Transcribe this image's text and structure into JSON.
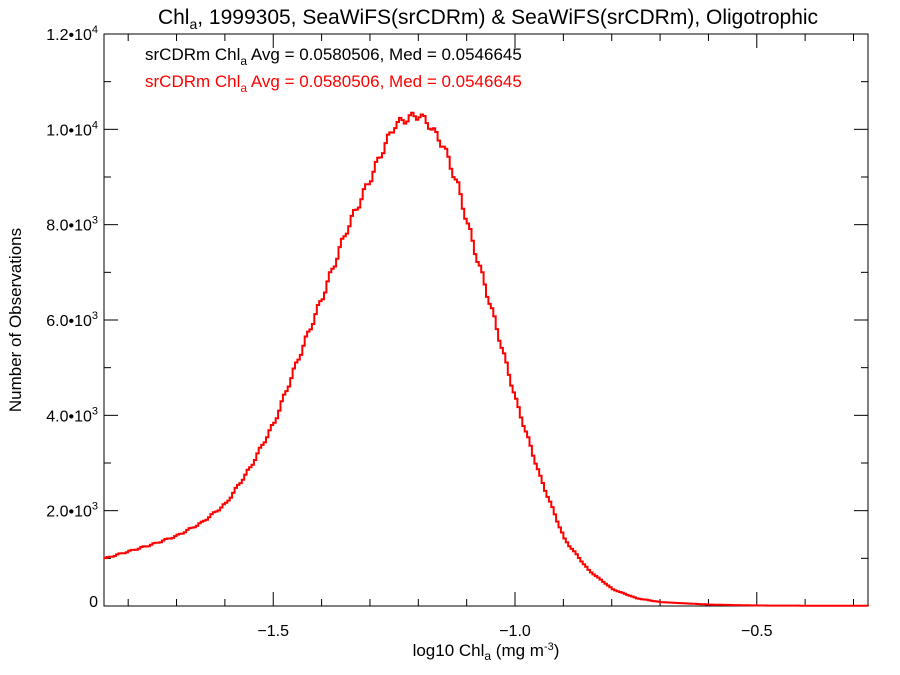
{
  "chart_data": {
    "type": "step",
    "title_main": "Chl",
    "title_sub": "a",
    "title_rest": ", 1999305, SeaWiFS(srCDRm) & SeaWiFS(srCDRm), Oligotrophic",
    "xlabel_pre": "log10 Chl",
    "xlabel_sub": "a",
    "xlabel_post": " (mg m",
    "xlabel_sup": "-3",
    "xlabel_end": ")",
    "ylabel": "Number of Observations",
    "xlim": [
      -1.85,
      -0.27
    ],
    "ylim": [
      0,
      12000
    ],
    "xticks": [
      {
        "value": -1.5,
        "label": "−1.5"
      },
      {
        "value": -1.0,
        "label": "−1.0"
      },
      {
        "value": -0.5,
        "label": "−0.5"
      }
    ],
    "yticks": [
      {
        "value": 0,
        "mant": "0",
        "exp": ""
      },
      {
        "value": 2000,
        "mant": "2.0•10",
        "exp": "3"
      },
      {
        "value": 4000,
        "mant": "4.0•10",
        "exp": "3"
      },
      {
        "value": 6000,
        "mant": "6.0•10",
        "exp": "3"
      },
      {
        "value": 8000,
        "mant": "8.0•10",
        "exp": "3"
      },
      {
        "value": 10000,
        "mant": "1.0•10",
        "exp": "4"
      },
      {
        "value": 12000,
        "mant": "1.2•10",
        "exp": "4"
      }
    ],
    "legend": [
      {
        "pre": "srCDRm Chl",
        "sub": "a",
        "post": " Avg = 0.0580506, Med = 0.0546645",
        "color": "#000000"
      },
      {
        "pre": "srCDRm Chl",
        "sub": "a",
        "post": " Avg = 0.0580506, Med = 0.0546645",
        "color": "#ff0000"
      }
    ],
    "series": [
      {
        "color": "#ff0000",
        "points": [
          [
            -1.85,
            1000
          ],
          [
            -1.8,
            1150
          ],
          [
            -1.75,
            1300
          ],
          [
            -1.7,
            1480
          ],
          [
            -1.65,
            1750
          ],
          [
            -1.6,
            2150
          ],
          [
            -1.55,
            2900
          ],
          [
            -1.5,
            3850
          ],
          [
            -1.45,
            5200
          ],
          [
            -1.4,
            6500
          ],
          [
            -1.35,
            7900
          ],
          [
            -1.3,
            9000
          ],
          [
            -1.27,
            9700
          ],
          [
            -1.25,
            10100
          ],
          [
            -1.22,
            10250
          ],
          [
            -1.2,
            10300
          ],
          [
            -1.18,
            10100
          ],
          [
            -1.15,
            9650
          ],
          [
            -1.12,
            8800
          ],
          [
            -1.1,
            8000
          ],
          [
            -1.05,
            6200
          ],
          [
            -1.0,
            4300
          ],
          [
            -0.95,
            2700
          ],
          [
            -0.9,
            1400
          ],
          [
            -0.85,
            750
          ],
          [
            -0.8,
            350
          ],
          [
            -0.75,
            160
          ],
          [
            -0.7,
            80
          ],
          [
            -0.6,
            30
          ],
          [
            -0.5,
            10
          ],
          [
            -0.27,
            3
          ]
        ]
      }
    ]
  }
}
